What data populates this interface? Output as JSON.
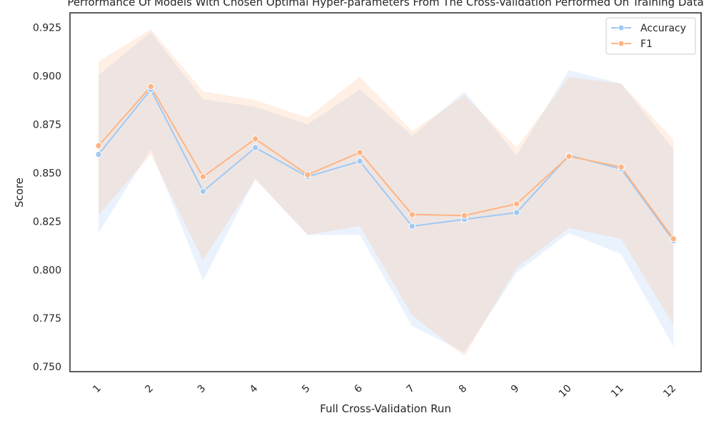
{
  "chart_data": {
    "type": "line",
    "title": "Performance Of Models With Chosen Optimal Hyper-parameters From The Cross-Validation Performed On Training Data",
    "xlabel": "Full Cross-Validation Run",
    "ylabel": "Score",
    "categories": [
      "1",
      "2",
      "3",
      "4",
      "5",
      "6",
      "7",
      "8",
      "9",
      "10",
      "11",
      "12"
    ],
    "ylim": [
      0.7475,
      0.9325
    ],
    "yticks": [
      0.75,
      0.775,
      0.8,
      0.825,
      0.85,
      0.875,
      0.9,
      0.925
    ],
    "ytick_labels": [
      "0.750",
      "0.775",
      "0.800",
      "0.825",
      "0.850",
      "0.875",
      "0.900",
      "0.925"
    ],
    "grid": false,
    "legend_position": "top-right",
    "series": [
      {
        "name": "Accuracy",
        "color": "#a1c9f4",
        "values": [
          0.8595,
          0.893,
          0.8405,
          0.863,
          0.848,
          0.856,
          0.8225,
          0.826,
          0.8295,
          0.859,
          0.852,
          0.815
        ],
        "band_upper": [
          0.9005,
          0.9225,
          0.888,
          0.884,
          0.875,
          0.893,
          0.869,
          0.892,
          0.859,
          0.903,
          0.896,
          0.862
        ],
        "band_lower": [
          0.819,
          0.862,
          0.7945,
          0.847,
          0.818,
          0.818,
          0.771,
          0.7575,
          0.7985,
          0.819,
          0.808,
          0.7605
        ]
      },
      {
        "name": "F1",
        "color": "#ffb482",
        "values": [
          0.864,
          0.8945,
          0.848,
          0.8675,
          0.849,
          0.8605,
          0.8285,
          0.828,
          0.834,
          0.8585,
          0.853,
          0.816
        ],
        "band_upper": [
          0.9075,
          0.924,
          0.892,
          0.8875,
          0.8785,
          0.8995,
          0.8715,
          0.89,
          0.863,
          0.8995,
          0.896,
          0.867
        ],
        "band_lower": [
          0.828,
          0.8595,
          0.805,
          0.8465,
          0.818,
          0.8225,
          0.7765,
          0.7555,
          0.801,
          0.8215,
          0.816,
          0.7715
        ]
      }
    ]
  }
}
